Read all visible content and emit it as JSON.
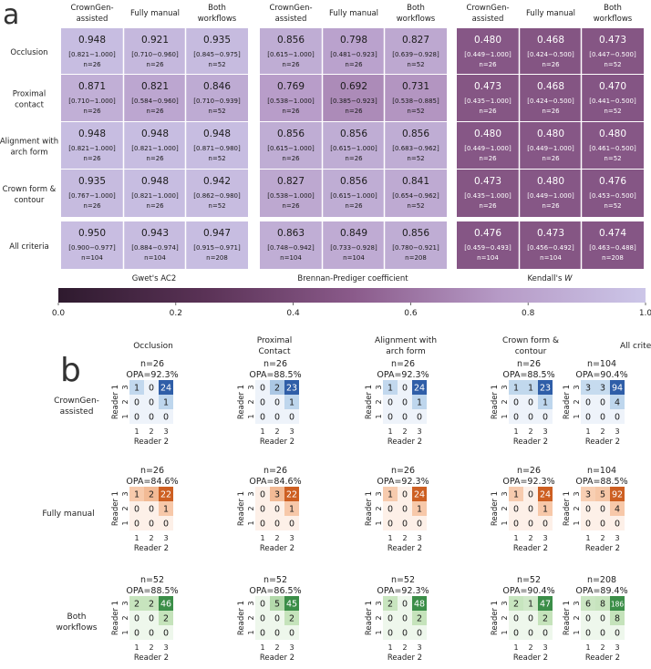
{
  "panel_a_label": "a",
  "panel_b_label": "b",
  "chart_data": [
    {
      "type": "heatmap",
      "panel": "a",
      "column_groups": [
        {
          "metric": "Gwet's AC2",
          "metric_prefix": "Gwet's AC2",
          "metric_italic": ""
        },
        {
          "metric": "Brennan-Prediger coefficient",
          "metric_prefix": "Brennan-Prediger coefficient",
          "metric_italic": ""
        },
        {
          "metric": "Kendall's W",
          "metric_prefix": "Kendall's ",
          "metric_italic": "W"
        }
      ],
      "columns": [
        {
          "line1": "CrownGen-",
          "line2": "assisted"
        },
        {
          "line1": "Fully manual",
          "line2": ""
        },
        {
          "line1": "Both",
          "line2": "workflows"
        }
      ],
      "rows": [
        {
          "line1": "Occlusion",
          "line2": ""
        },
        {
          "line1": "Proximal",
          "line2": "contact"
        },
        {
          "line1": "Alignment with",
          "line2": "arch form"
        },
        {
          "line1": "Crown form &",
          "line2": "contour"
        },
        {
          "line1": "All criteria",
          "line2": ""
        }
      ],
      "cells": [
        [
          [
            {
              "value": "0.948",
              "ci": "[0.821−1.000]",
              "n": "n=26"
            },
            {
              "value": "0.921",
              "ci": "[0.710−0.960]",
              "n": "n=26"
            },
            {
              "value": "0.935",
              "ci": "[0.845−0.975]",
              "n": "n=52"
            }
          ],
          [
            {
              "value": "0.856",
              "ci": "[0.615−1.000]",
              "n": "n=26"
            },
            {
              "value": "0.798",
              "ci": "[0.481−0.923]",
              "n": "n=26"
            },
            {
              "value": "0.827",
              "ci": "[0.639−0.928]",
              "n": "n=52"
            }
          ],
          [
            {
              "value": "0.480",
              "ci": "[0.449−1.000]",
              "n": "n=26"
            },
            {
              "value": "0.468",
              "ci": "[0.424−0.500]",
              "n": "n=26"
            },
            {
              "value": "0.473",
              "ci": "[0.447−0.500]",
              "n": "n=52"
            }
          ]
        ],
        [
          [
            {
              "value": "0.871",
              "ci": "[0.710−1.000]",
              "n": "n=26"
            },
            {
              "value": "0.821",
              "ci": "[0.584−0.960]",
              "n": "n=26"
            },
            {
              "value": "0.846",
              "ci": "[0.710−0.939]",
              "n": "n=52"
            }
          ],
          [
            {
              "value": "0.769",
              "ci": "[0.538−1.000]",
              "n": "n=26"
            },
            {
              "value": "0.692",
              "ci": "[0.385−0.923]",
              "n": "n=26"
            },
            {
              "value": "0.731",
              "ci": "[0.538−0.885]",
              "n": "n=52"
            }
          ],
          [
            {
              "value": "0.473",
              "ci": "[0.435−1.000]",
              "n": "n=26"
            },
            {
              "value": "0.468",
              "ci": "[0.424−0.500]",
              "n": "n=26"
            },
            {
              "value": "0.470",
              "ci": "[0.441−0.500]",
              "n": "n=52"
            }
          ]
        ],
        [
          [
            {
              "value": "0.948",
              "ci": "[0.821−1.000]",
              "n": "n=26"
            },
            {
              "value": "0.948",
              "ci": "[0.821−1.000]",
              "n": "n=26"
            },
            {
              "value": "0.948",
              "ci": "[0.871−0.980]",
              "n": "n=52"
            }
          ],
          [
            {
              "value": "0.856",
              "ci": "[0.615−1.000]",
              "n": "n=26"
            },
            {
              "value": "0.856",
              "ci": "[0.615−1.000]",
              "n": "n=26"
            },
            {
              "value": "0.856",
              "ci": "[0.683−0.962]",
              "n": "n=52"
            }
          ],
          [
            {
              "value": "0.480",
              "ci": "[0.449−1.000]",
              "n": "n=26"
            },
            {
              "value": "0.480",
              "ci": "[0.449−1.000]",
              "n": "n=26"
            },
            {
              "value": "0.480",
              "ci": "[0.461−0.500]",
              "n": "n=52"
            }
          ]
        ],
        [
          [
            {
              "value": "0.935",
              "ci": "[0.767−1.000]",
              "n": "n=26"
            },
            {
              "value": "0.948",
              "ci": "[0.821−1.000]",
              "n": "n=26"
            },
            {
              "value": "0.942",
              "ci": "[0.862−0.980]",
              "n": "n=52"
            }
          ],
          [
            {
              "value": "0.827",
              "ci": "[0.538−1.000]",
              "n": "n=26"
            },
            {
              "value": "0.856",
              "ci": "[0.615−1.000]",
              "n": "n=26"
            },
            {
              "value": "0.841",
              "ci": "[0.654−0.962]",
              "n": "n=52"
            }
          ],
          [
            {
              "value": "0.473",
              "ci": "[0.435−1.000]",
              "n": "n=26"
            },
            {
              "value": "0.480",
              "ci": "[0.449−1.000]",
              "n": "n=26"
            },
            {
              "value": "0.476",
              "ci": "[0.453−0.500]",
              "n": "n=52"
            }
          ]
        ],
        [
          [
            {
              "value": "0.950",
              "ci": "[0.900−0.977]",
              "n": "n=104"
            },
            {
              "value": "0.943",
              "ci": "[0.884−0.974]",
              "n": "n=104"
            },
            {
              "value": "0.947",
              "ci": "[0.915−0.971]",
              "n": "n=208"
            }
          ],
          [
            {
              "value": "0.863",
              "ci": "[0.748−0.942]",
              "n": "n=104"
            },
            {
              "value": "0.849",
              "ci": "[0.733−0.928]",
              "n": "n=104"
            },
            {
              "value": "0.856",
              "ci": "[0.780−0.921]",
              "n": "n=208"
            }
          ],
          [
            {
              "value": "0.476",
              "ci": "[0.459−0.493]",
              "n": "n=104"
            },
            {
              "value": "0.473",
              "ci": "[0.456−0.492]",
              "n": "n=104"
            },
            {
              "value": "0.474",
              "ci": "[0.463−0.488]",
              "n": "n=208"
            }
          ]
        ]
      ],
      "colorbar": {
        "range": [
          0.0,
          1.0
        ],
        "ticks": [
          "0.0",
          "0.2",
          "0.4",
          "0.6",
          "0.8",
          "1.0"
        ],
        "colormap": [
          "#2e1a2e",
          "#5a3256",
          "#8a5a8a",
          "#b69ac6",
          "#ccc6e8"
        ]
      }
    },
    {
      "type": "heatmap",
      "panel": "b",
      "columns": [
        {
          "line1": "Occlusion",
          "line2": ""
        },
        {
          "line1": "Proximal",
          "line2": "Contact"
        },
        {
          "line1": "Alignment with",
          "line2": "arch form"
        },
        {
          "line1": "Crown form &",
          "line2": "contour"
        },
        {
          "line1": "All criteria",
          "line2": ""
        }
      ],
      "rows": [
        {
          "line1": "CrownGen-",
          "line2": "assisted",
          "palette": [
            "#eef3fa",
            "#b9d3eb",
            "#2f5ea8"
          ]
        },
        {
          "line1": "Fully manual",
          "line2": "",
          "palette": [
            "#fdf0e8",
            "#f6c4a2",
            "#cd5f22"
          ]
        },
        {
          "line1": "Both",
          "line2": "workflows",
          "palette": [
            "#eef7ec",
            "#c0e1b6",
            "#3b8e48"
          ]
        }
      ],
      "xlabel": "Reader 2",
      "ylabel": "Reader 1",
      "tick_labels": [
        "1",
        "2",
        "3"
      ],
      "matrices": [
        [
          {
            "n": "n=26",
            "opa": "OPA=92.3%",
            "grid": [
              [
                1,
                0,
                24
              ],
              [
                0,
                0,
                1
              ],
              [
                0,
                0,
                0
              ]
            ]
          },
          {
            "n": "n=26",
            "opa": "OPA=88.5%",
            "grid": [
              [
                0,
                2,
                23
              ],
              [
                0,
                0,
                1
              ],
              [
                0,
                0,
                0
              ]
            ]
          },
          {
            "n": "n=26",
            "opa": "OPA=92.3%",
            "grid": [
              [
                1,
                0,
                24
              ],
              [
                0,
                0,
                1
              ],
              [
                0,
                0,
                0
              ]
            ]
          },
          {
            "n": "n=26",
            "opa": "OPA=88.5%",
            "grid": [
              [
                1,
                1,
                23
              ],
              [
                0,
                0,
                1
              ],
              [
                0,
                0,
                0
              ]
            ]
          },
          {
            "n": "n=104",
            "opa": "OPA=90.4%",
            "grid": [
              [
                3,
                3,
                94
              ],
              [
                0,
                0,
                4
              ],
              [
                0,
                0,
                0
              ]
            ]
          }
        ],
        [
          {
            "n": "n=26",
            "opa": "OPA=84.6%",
            "grid": [
              [
                1,
                2,
                22
              ],
              [
                0,
                0,
                1
              ],
              [
                0,
                0,
                0
              ]
            ]
          },
          {
            "n": "n=26",
            "opa": "OPA=84.6%",
            "grid": [
              [
                0,
                3,
                22
              ],
              [
                0,
                0,
                1
              ],
              [
                0,
                0,
                0
              ]
            ]
          },
          {
            "n": "n=26",
            "opa": "OPA=92.3%",
            "grid": [
              [
                1,
                0,
                24
              ],
              [
                0,
                0,
                1
              ],
              [
                0,
                0,
                0
              ]
            ]
          },
          {
            "n": "n=26",
            "opa": "OPA=92.3%",
            "grid": [
              [
                1,
                0,
                24
              ],
              [
                0,
                0,
                1
              ],
              [
                0,
                0,
                0
              ]
            ]
          },
          {
            "n": "n=104",
            "opa": "OPA=88.5%",
            "grid": [
              [
                3,
                5,
                92
              ],
              [
                0,
                0,
                4
              ],
              [
                0,
                0,
                0
              ]
            ]
          }
        ],
        [
          {
            "n": "n=52",
            "opa": "OPA=88.5%",
            "grid": [
              [
                2,
                2,
                46
              ],
              [
                0,
                0,
                2
              ],
              [
                0,
                0,
                0
              ]
            ]
          },
          {
            "n": "n=52",
            "opa": "OPA=86.5%",
            "grid": [
              [
                0,
                5,
                45
              ],
              [
                0,
                0,
                2
              ],
              [
                0,
                0,
                0
              ]
            ]
          },
          {
            "n": "n=52",
            "opa": "OPA=92.3%",
            "grid": [
              [
                2,
                0,
                48
              ],
              [
                0,
                0,
                2
              ],
              [
                0,
                0,
                0
              ]
            ]
          },
          {
            "n": "n=52",
            "opa": "OPA=90.4%",
            "grid": [
              [
                2,
                1,
                47
              ],
              [
                0,
                0,
                2
              ],
              [
                0,
                0,
                0
              ]
            ]
          },
          {
            "n": "n=208",
            "opa": "OPA=89.4%",
            "grid": [
              [
                6,
                8,
                186
              ],
              [
                0,
                0,
                8
              ],
              [
                0,
                0,
                0
              ]
            ]
          }
        ]
      ]
    }
  ]
}
